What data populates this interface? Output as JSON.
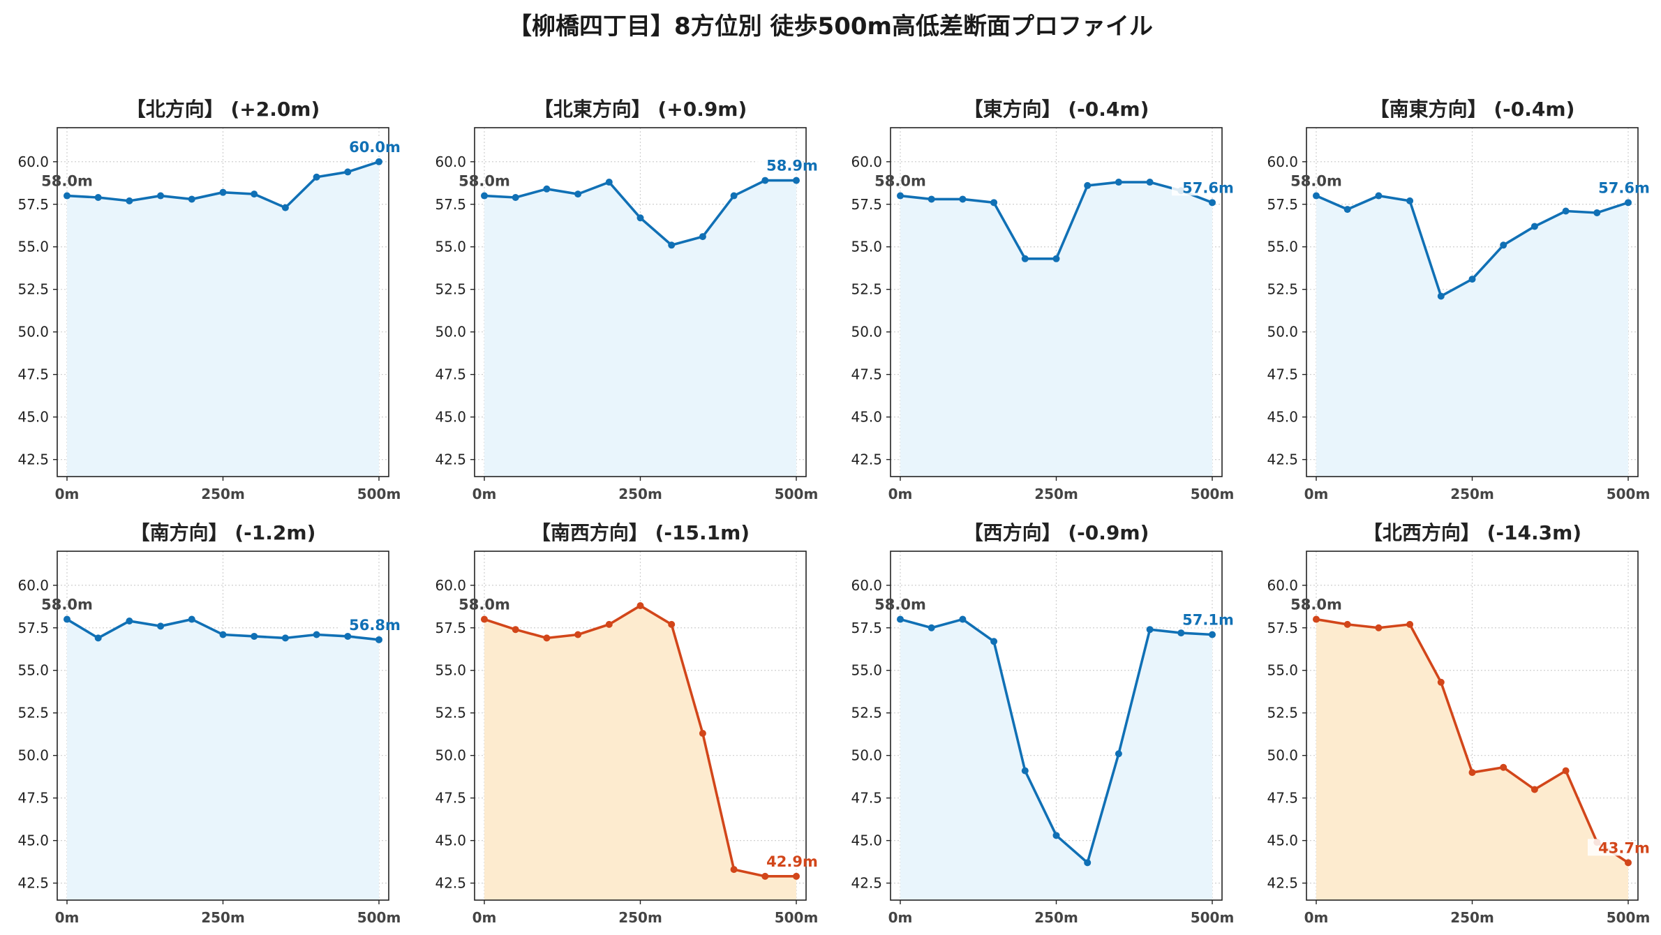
{
  "title": "【柳橋四丁目】8方位別 徒歩500m高低差断面プロファイル",
  "colors": {
    "normal_line": "#1070b5",
    "normal_fill": "#e9f5fc",
    "warn_line": "#d2461a",
    "warn_fill": "#fdebcf",
    "start_label": "#444444"
  },
  "chart_data": [
    {
      "type": "line",
      "title": "【北方向】 (+2.0m)",
      "x": [
        0,
        50,
        100,
        150,
        200,
        250,
        300,
        350,
        400,
        450,
        500
      ],
      "values": [
        58.0,
        57.9,
        57.7,
        58.0,
        57.8,
        58.2,
        58.1,
        57.3,
        59.1,
        59.4,
        60.0
      ],
      "start_label": "58.0m",
      "end_label": "60.0m",
      "style": "normal",
      "xticks": [
        "0m",
        "250m",
        "500m"
      ],
      "yticks": [
        "42.5",
        "45.0",
        "47.5",
        "50.0",
        "52.5",
        "55.0",
        "57.5",
        "60.0"
      ],
      "ylim": [
        41.5,
        62.0
      ],
      "grid": true
    },
    {
      "type": "line",
      "title": "【北東方向】 (+0.9m)",
      "x": [
        0,
        50,
        100,
        150,
        200,
        250,
        300,
        350,
        400,
        450,
        500
      ],
      "values": [
        58.0,
        57.9,
        58.4,
        58.1,
        58.8,
        56.7,
        55.1,
        55.6,
        58.0,
        58.9,
        58.9
      ],
      "start_label": "58.0m",
      "end_label": "58.9m",
      "style": "normal",
      "xticks": [
        "0m",
        "250m",
        "500m"
      ],
      "yticks": [
        "42.5",
        "45.0",
        "47.5",
        "50.0",
        "52.5",
        "55.0",
        "57.5",
        "60.0"
      ],
      "ylim": [
        41.5,
        62.0
      ],
      "grid": true
    },
    {
      "type": "line",
      "title": "【東方向】 (-0.4m)",
      "x": [
        0,
        50,
        100,
        150,
        200,
        250,
        300,
        350,
        400,
        450,
        500
      ],
      "values": [
        58.0,
        57.8,
        57.8,
        57.6,
        54.3,
        54.3,
        58.6,
        58.8,
        58.8,
        58.3,
        57.6
      ],
      "start_label": "58.0m",
      "end_label": "57.6m",
      "style": "normal",
      "xticks": [
        "0m",
        "250m",
        "500m"
      ],
      "yticks": [
        "42.5",
        "45.0",
        "47.5",
        "50.0",
        "52.5",
        "55.0",
        "57.5",
        "60.0"
      ],
      "ylim": [
        41.5,
        62.0
      ],
      "grid": true
    },
    {
      "type": "line",
      "title": "【南東方向】 (-0.4m)",
      "x": [
        0,
        50,
        100,
        150,
        200,
        250,
        300,
        350,
        400,
        450,
        500
      ],
      "values": [
        58.0,
        57.2,
        58.0,
        57.7,
        52.1,
        53.1,
        55.1,
        56.2,
        57.1,
        57.0,
        57.6
      ],
      "start_label": "58.0m",
      "end_label": "57.6m",
      "style": "normal",
      "xticks": [
        "0m",
        "250m",
        "500m"
      ],
      "yticks": [
        "42.5",
        "45.0",
        "47.5",
        "50.0",
        "52.5",
        "55.0",
        "57.5",
        "60.0"
      ],
      "ylim": [
        41.5,
        62.0
      ],
      "grid": true
    },
    {
      "type": "line",
      "title": "【南方向】 (-1.2m)",
      "x": [
        0,
        50,
        100,
        150,
        200,
        250,
        300,
        350,
        400,
        450,
        500
      ],
      "values": [
        58.0,
        56.9,
        57.9,
        57.6,
        58.0,
        57.1,
        57.0,
        56.9,
        57.1,
        57.0,
        56.8
      ],
      "start_label": "58.0m",
      "end_label": "56.8m",
      "style": "normal",
      "xticks": [
        "0m",
        "250m",
        "500m"
      ],
      "yticks": [
        "42.5",
        "45.0",
        "47.5",
        "50.0",
        "52.5",
        "55.0",
        "57.5",
        "60.0"
      ],
      "ylim": [
        41.5,
        62.0
      ],
      "grid": true
    },
    {
      "type": "line",
      "title": "【南西方向】 (-15.1m)",
      "x": [
        0,
        50,
        100,
        150,
        200,
        250,
        300,
        350,
        400,
        450,
        500
      ],
      "values": [
        58.0,
        57.4,
        56.9,
        57.1,
        57.7,
        58.8,
        57.7,
        51.3,
        43.3,
        42.9,
        42.9
      ],
      "start_label": "58.0m",
      "end_label": "42.9m",
      "style": "warn",
      "xticks": [
        "0m",
        "250m",
        "500m"
      ],
      "yticks": [
        "42.5",
        "45.0",
        "47.5",
        "50.0",
        "52.5",
        "55.0",
        "57.5",
        "60.0"
      ],
      "ylim": [
        41.5,
        62.0
      ],
      "grid": true
    },
    {
      "type": "line",
      "title": "【西方向】 (-0.9m)",
      "x": [
        0,
        50,
        100,
        150,
        200,
        250,
        300,
        350,
        400,
        450,
        500
      ],
      "values": [
        58.0,
        57.5,
        58.0,
        56.7,
        49.1,
        45.3,
        43.7,
        50.1,
        57.4,
        57.2,
        57.1
      ],
      "start_label": "58.0m",
      "end_label": "57.1m",
      "style": "normal",
      "xticks": [
        "0m",
        "250m",
        "500m"
      ],
      "yticks": [
        "42.5",
        "45.0",
        "47.5",
        "50.0",
        "52.5",
        "55.0",
        "57.5",
        "60.0"
      ],
      "ylim": [
        41.5,
        62.0
      ],
      "grid": true
    },
    {
      "type": "line",
      "title": "【北西方向】 (-14.3m)",
      "x": [
        0,
        50,
        100,
        150,
        200,
        250,
        300,
        350,
        400,
        450,
        500
      ],
      "values": [
        58.0,
        57.7,
        57.5,
        57.7,
        54.3,
        49.0,
        49.3,
        48.0,
        49.1,
        44.9,
        43.7
      ],
      "start_label": "58.0m",
      "end_label": "43.7m",
      "style": "warn",
      "xticks": [
        "0m",
        "250m",
        "500m"
      ],
      "yticks": [
        "42.5",
        "45.0",
        "47.5",
        "50.0",
        "52.5",
        "55.0",
        "57.5",
        "60.0"
      ],
      "ylim": [
        41.5,
        62.0
      ],
      "grid": true
    }
  ]
}
